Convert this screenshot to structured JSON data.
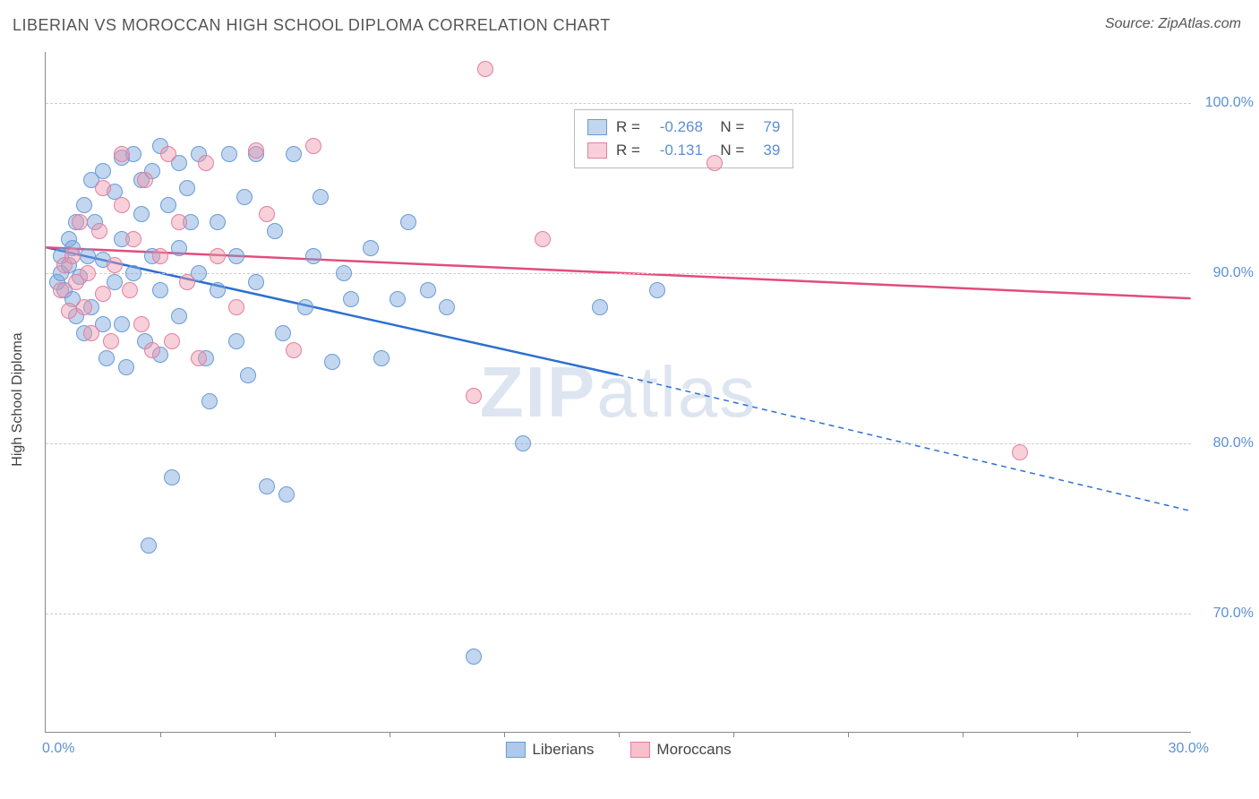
{
  "title": "LIBERIAN VS MOROCCAN HIGH SCHOOL DIPLOMA CORRELATION CHART",
  "source": "Source: ZipAtlas.com",
  "ylabel": "High School Diploma",
  "watermark_bold": "ZIP",
  "watermark_light": "atlas",
  "chart": {
    "type": "scatter",
    "xlim": [
      0,
      30
    ],
    "ylim": [
      63,
      103
    ],
    "xtick_labels": [
      "0.0%",
      "30.0%"
    ],
    "ytick_positions": [
      70,
      80,
      90,
      100
    ],
    "ytick_labels": [
      "70.0%",
      "80.0%",
      "90.0%",
      "100.0%"
    ],
    "xtick_marks": [
      3,
      6,
      9,
      12,
      15,
      18,
      21,
      24,
      27
    ],
    "background_color": "#ffffff",
    "grid_color": "#cccccc",
    "axis_color": "#888888",
    "label_color": "#5b8fd6",
    "dot_radius": 9,
    "dot_border_width": 1,
    "series": [
      {
        "name": "Liberians",
        "fill": "rgba(120,165,220,0.45)",
        "stroke": "#6a9bd8",
        "line_color": "#2d6fd0",
        "line_width": 2.5,
        "trend": {
          "x1": 0,
          "y1": 91.5,
          "x_solid_end": 15,
          "y_solid_end": 84,
          "x2": 30,
          "y2": 76
        },
        "R": "-0.268",
        "N": "79",
        "points": [
          [
            0.3,
            89.5
          ],
          [
            0.4,
            90
          ],
          [
            0.4,
            91
          ],
          [
            0.5,
            89
          ],
          [
            0.6,
            90.5
          ],
          [
            0.6,
            92
          ],
          [
            0.7,
            88.5
          ],
          [
            0.7,
            91.5
          ],
          [
            0.8,
            93
          ],
          [
            0.8,
            87.5
          ],
          [
            0.9,
            89.8
          ],
          [
            1.0,
            94
          ],
          [
            1.0,
            86.5
          ],
          [
            1.1,
            91
          ],
          [
            1.2,
            95.5
          ],
          [
            1.2,
            88
          ],
          [
            1.3,
            93
          ],
          [
            1.5,
            96
          ],
          [
            1.5,
            87
          ],
          [
            1.5,
            90.8
          ],
          [
            1.6,
            85
          ],
          [
            1.8,
            94.8
          ],
          [
            1.8,
            89.5
          ],
          [
            2.0,
            96.8
          ],
          [
            2.0,
            92
          ],
          [
            2.0,
            87
          ],
          [
            2.1,
            84.5
          ],
          [
            2.3,
            97
          ],
          [
            2.3,
            90
          ],
          [
            2.5,
            93.5
          ],
          [
            2.5,
            95.5
          ],
          [
            2.6,
            86
          ],
          [
            2.7,
            74
          ],
          [
            2.8,
            91
          ],
          [
            2.8,
            96
          ],
          [
            3.0,
            97.5
          ],
          [
            3.0,
            89
          ],
          [
            3.0,
            85.2
          ],
          [
            3.2,
            94
          ],
          [
            3.3,
            78
          ],
          [
            3.5,
            96.5
          ],
          [
            3.5,
            91.5
          ],
          [
            3.5,
            87.5
          ],
          [
            3.7,
            95
          ],
          [
            3.8,
            93
          ],
          [
            4.0,
            90
          ],
          [
            4.0,
            97
          ],
          [
            4.2,
            85
          ],
          [
            4.3,
            82.5
          ],
          [
            4.5,
            93
          ],
          [
            4.5,
            89
          ],
          [
            4.8,
            97
          ],
          [
            5.0,
            91
          ],
          [
            5.0,
            86
          ],
          [
            5.2,
            94.5
          ],
          [
            5.3,
            84
          ],
          [
            5.5,
            89.5
          ],
          [
            5.5,
            97
          ],
          [
            5.8,
            77.5
          ],
          [
            6.0,
            92.5
          ],
          [
            6.2,
            86.5
          ],
          [
            6.3,
            77
          ],
          [
            6.5,
            97
          ],
          [
            6.8,
            88
          ],
          [
            7.0,
            91
          ],
          [
            7.2,
            94.5
          ],
          [
            7.5,
            84.8
          ],
          [
            7.8,
            90
          ],
          [
            8.0,
            88.5
          ],
          [
            8.5,
            91.5
          ],
          [
            8.8,
            85
          ],
          [
            9.2,
            88.5
          ],
          [
            9.5,
            93
          ],
          [
            10.0,
            89
          ],
          [
            10.5,
            88
          ],
          [
            11.2,
            67.5
          ],
          [
            12.5,
            80
          ],
          [
            14.5,
            88
          ],
          [
            16.0,
            89
          ]
        ]
      },
      {
        "name": "Moroccans",
        "fill": "rgba(240,150,170,0.45)",
        "stroke": "#e37fa0",
        "line_color": "#e14d7b",
        "line_width": 2.5,
        "trend": {
          "x1": 0,
          "y1": 91.5,
          "x_solid_end": 30,
          "y_solid_end": 88.5,
          "x2": 30,
          "y2": 88.5
        },
        "R": "-0.131",
        "N": "39",
        "points": [
          [
            0.4,
            89
          ],
          [
            0.5,
            90.5
          ],
          [
            0.6,
            87.8
          ],
          [
            0.7,
            91
          ],
          [
            0.8,
            89.5
          ],
          [
            0.9,
            93
          ],
          [
            1.0,
            88
          ],
          [
            1.1,
            90
          ],
          [
            1.2,
            86.5
          ],
          [
            1.4,
            92.5
          ],
          [
            1.5,
            95
          ],
          [
            1.5,
            88.8
          ],
          [
            1.7,
            86
          ],
          [
            1.8,
            90.5
          ],
          [
            2.0,
            94
          ],
          [
            2.0,
            97
          ],
          [
            2.2,
            89
          ],
          [
            2.3,
            92
          ],
          [
            2.5,
            87
          ],
          [
            2.6,
            95.5
          ],
          [
            2.8,
            85.5
          ],
          [
            3.0,
            91
          ],
          [
            3.2,
            97
          ],
          [
            3.3,
            86
          ],
          [
            3.5,
            93
          ],
          [
            3.7,
            89.5
          ],
          [
            4.0,
            85
          ],
          [
            4.2,
            96.5
          ],
          [
            4.5,
            91
          ],
          [
            5.0,
            88
          ],
          [
            5.5,
            97.2
          ],
          [
            5.8,
            93.5
          ],
          [
            6.5,
            85.5
          ],
          [
            7.0,
            97.5
          ],
          [
            11.2,
            82.8
          ],
          [
            11.5,
            102
          ],
          [
            13.0,
            92
          ],
          [
            17.5,
            96.5
          ],
          [
            25.5,
            79.5
          ]
        ]
      }
    ],
    "bottom_legend": [
      {
        "label": "Liberians",
        "fill": "rgba(120,165,220,0.6)",
        "stroke": "#6a9bd8"
      },
      {
        "label": "Moroccans",
        "fill": "rgba(240,150,170,0.6)",
        "stroke": "#e37fa0"
      }
    ]
  }
}
